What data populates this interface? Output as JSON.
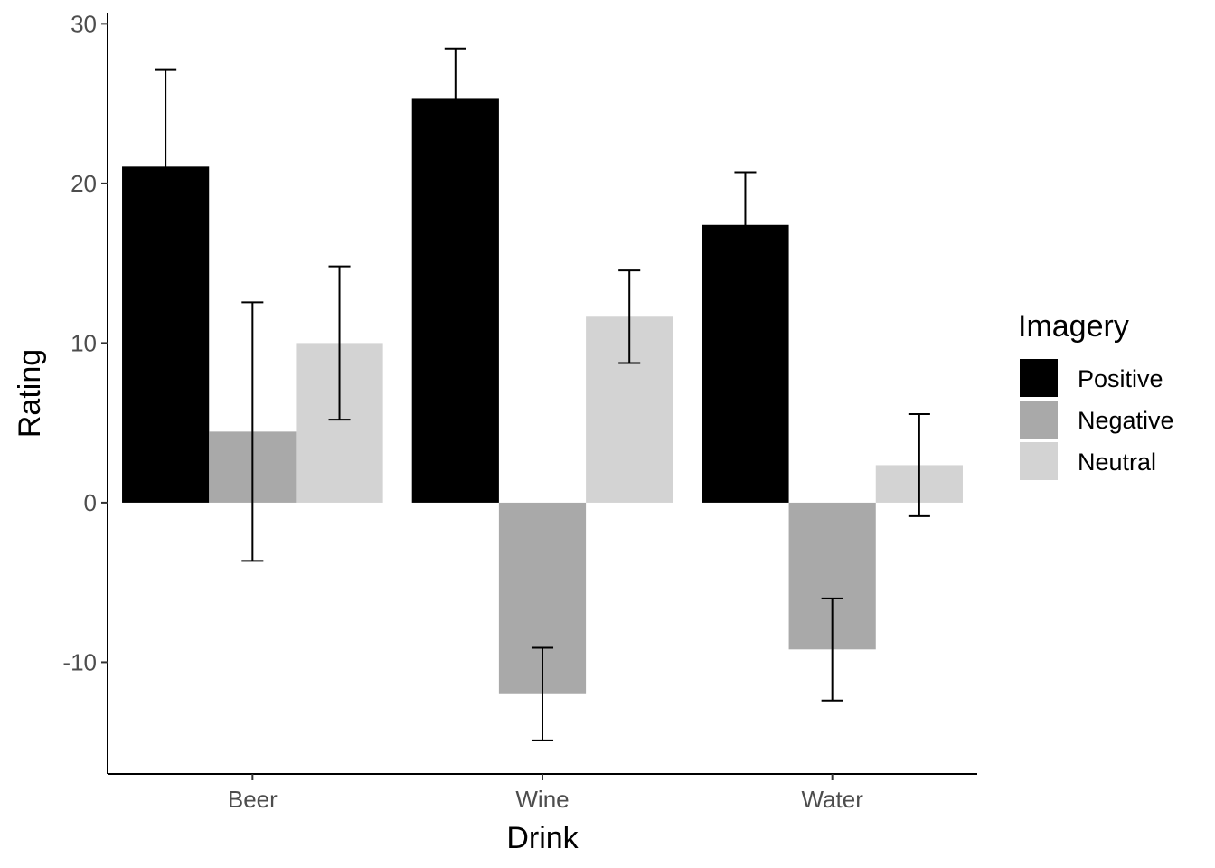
{
  "chart_data": {
    "type": "bar",
    "categories": [
      "Beer",
      "Wine",
      "Water"
    ],
    "series": [
      {
        "name": "Positive",
        "color": "#000000",
        "values": [
          21.05,
          25.35,
          17.4
        ],
        "error": [
          6.1,
          3.1,
          3.3
        ]
      },
      {
        "name": "Negative",
        "color": "#a9a9a9",
        "values": [
          4.45,
          -12.0,
          -9.2
        ],
        "error": [
          8.1,
          2.9,
          3.2
        ]
      },
      {
        "name": "Neutral",
        "color": "#d3d3d3",
        "values": [
          10.0,
          11.65,
          2.35
        ],
        "error": [
          4.8,
          2.9,
          3.2
        ]
      }
    ],
    "xlabel": "Drink",
    "ylabel": "Rating",
    "ylim": [
      -17,
      30.7
    ],
    "yticks": [
      -10,
      0,
      10,
      20,
      30
    ],
    "legend": {
      "title": "Imagery",
      "position": "right"
    },
    "grid": false
  }
}
